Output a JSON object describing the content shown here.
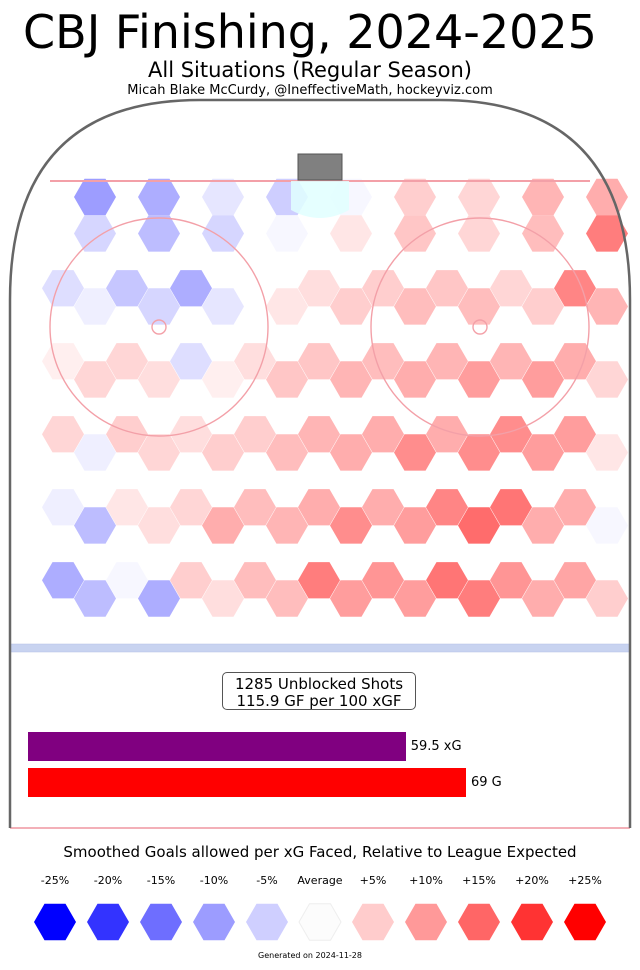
{
  "header": {
    "title": "CBJ Finishing, 2024-2025",
    "subtitle": "All Situations (Regular Season)",
    "credit": "Micah Blake McCurdy, @IneffectiveMath, hockeyviz.com"
  },
  "summary": {
    "shots_line": "1285 Unblocked Shots",
    "rate_line": "115.9 GF per 100 xGF"
  },
  "bars": [
    {
      "value": 59.5,
      "label": "59.5 xG",
      "color": "#800080"
    },
    {
      "value": 69,
      "label": "69 G",
      "color": "#ff0000"
    }
  ],
  "legend": {
    "title": "Smoothed Goals allowed per xG Faced, Relative to League Expected",
    "items": [
      {
        "label": "-25%",
        "color": "#0000ff"
      },
      {
        "label": "-20%",
        "color": "#3333ff"
      },
      {
        "label": "-15%",
        "color": "#6e6eff"
      },
      {
        "label": "-10%",
        "color": "#9c9cff"
      },
      {
        "label": "-5%",
        "color": "#cfcfff"
      },
      {
        "label": "Average",
        "color": "#fcfcfc"
      },
      {
        "label": "+5%",
        "color": "#ffcccc"
      },
      {
        "label": "+10%",
        "color": "#ff9999"
      },
      {
        "label": "+15%",
        "color": "#ff6666"
      },
      {
        "label": "+20%",
        "color": "#ff3333"
      },
      {
        "label": "+25%",
        "color": "#ff0000"
      }
    ]
  },
  "footer": "Generated on 2024-11-28",
  "chart_data": {
    "type": "heatmap",
    "grid_columns": 18,
    "grid_rows": 12,
    "cell_shape": "hexagon",
    "value_unit": "relative finishing vs league expected",
    "value_range": [
      -0.25,
      0.25
    ],
    "rows": [
      [
        0,
        -0.12,
        0,
        -0.1,
        0,
        -0.03,
        0,
        -0.06,
        0,
        -0.01,
        0,
        0.06,
        0,
        0.05,
        0,
        0.09,
        0,
        0.1
      ],
      [
        0,
        -0.05,
        0,
        -0.08,
        0,
        -0.05,
        0,
        -0.01,
        0,
        0.03,
        0,
        0.07,
        0,
        0.05,
        0,
        0.08,
        0,
        0.16
      ],
      [
        -0.04,
        0,
        -0.07,
        0,
        -0.1,
        0,
        0,
        0,
        0.04,
        0,
        0.06,
        0,
        0.07,
        0,
        0.05,
        0,
        0.15,
        0
      ],
      [
        0,
        -0.02,
        0,
        -0.05,
        0,
        -0.03,
        0,
        0.03,
        0,
        0.06,
        0,
        0.08,
        0,
        0.08,
        0,
        0.06,
        0,
        0.09
      ],
      [
        0.02,
        0,
        0.05,
        0,
        -0.04,
        0,
        0.04,
        0,
        0.07,
        0,
        0.08,
        0,
        0.09,
        0,
        0.09,
        0,
        0.1,
        0
      ],
      [
        0,
        0.05,
        0,
        0.04,
        0,
        0.02,
        0,
        0.07,
        0,
        0.09,
        0,
        0.1,
        0,
        0.12,
        0,
        0.12,
        0,
        0.05
      ],
      [
        0.05,
        0,
        0.06,
        0,
        0.04,
        0,
        0.06,
        0,
        0.09,
        0,
        0.1,
        0,
        0.1,
        0,
        0.14,
        0,
        0.12,
        0
      ],
      [
        0,
        -0.02,
        0,
        0.05,
        0,
        0.06,
        0,
        0.08,
        0,
        0.1,
        0,
        0.14,
        0,
        0.14,
        0,
        0.12,
        0,
        0.03
      ],
      [
        -0.02,
        0,
        0.03,
        0,
        0.05,
        0,
        0.08,
        0,
        0.1,
        0,
        0.1,
        0,
        0.15,
        0,
        0.17,
        0,
        0.1,
        0
      ],
      [
        0,
        -0.08,
        0,
        0.04,
        0,
        0.1,
        0,
        0.09,
        0,
        0.14,
        0,
        0.12,
        0,
        0.18,
        0,
        0.1,
        0,
        -0.01
      ],
      [
        -0.1,
        0,
        -0.01,
        0,
        0.06,
        0,
        0.08,
        0,
        0.16,
        0,
        0.13,
        0,
        0.17,
        0,
        0.13,
        0,
        0.11,
        0
      ],
      [
        0,
        -0.08,
        0,
        -0.1,
        0,
        0.04,
        0,
        0.08,
        0,
        0.12,
        0,
        0.12,
        0,
        0.16,
        0,
        0.1,
        0,
        0.06
      ]
    ]
  }
}
